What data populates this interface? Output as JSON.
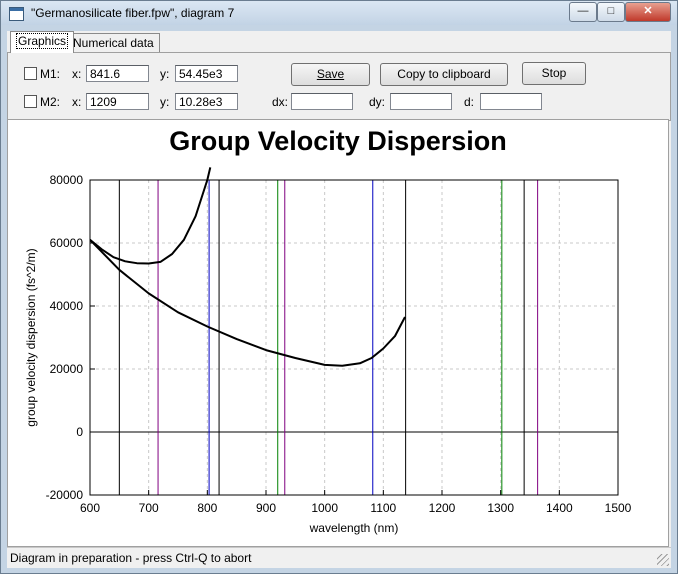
{
  "window": {
    "title": "\"Germanosilicate fiber.fpw\", diagram 7",
    "buttons": {
      "minimize": "—",
      "maximize": "□",
      "close": "✕"
    }
  },
  "tabs": [
    {
      "label": "Graphics",
      "active": true
    },
    {
      "label": "Numerical data",
      "active": false
    }
  ],
  "markers": {
    "m1": {
      "label": "M1:",
      "x_label": "x:",
      "x_value": "841.6",
      "y_label": "y:",
      "y_value": "54.45e3",
      "checked": false
    },
    "m2": {
      "label": "M2:",
      "x_label": "x:",
      "x_value": "1209",
      "y_label": "y:",
      "y_value": "10.28e3",
      "checked": false
    }
  },
  "deltas": {
    "dx_label": "dx:",
    "dx_value": "",
    "dy_label": "dy:",
    "dy_value": "",
    "d_label": "d:",
    "d_value": ""
  },
  "toolbar": {
    "save_label": "Save",
    "copy_label": "Copy to clipboard",
    "stop_label": "Stop"
  },
  "status": {
    "text": "Diagram in preparation - press Ctrl-Q to abort"
  },
  "chart_data": {
    "type": "line",
    "title": "Group Velocity Dispersion",
    "xlabel": "wavelength (nm)",
    "ylabel": "group velocity dispersion (fs^2/m)",
    "xlim": [
      600,
      1500
    ],
    "ylim": [
      -20000,
      80000
    ],
    "x_ticks": [
      600,
      700,
      800,
      900,
      1000,
      1100,
      1200,
      1300,
      1400,
      1500
    ],
    "y_ticks": [
      -20000,
      0,
      20000,
      40000,
      60000,
      80000
    ],
    "grid": true,
    "series": [
      {
        "color": "#000000",
        "points": [
          [
            600,
            61000
          ],
          [
            620,
            58000
          ],
          [
            640,
            55500
          ],
          [
            660,
            54200
          ],
          [
            680,
            53600
          ],
          [
            700,
            53500
          ],
          [
            720,
            54000
          ],
          [
            740,
            56500
          ],
          [
            760,
            61000
          ],
          [
            780,
            68500
          ],
          [
            800,
            80000
          ],
          [
            805,
            84000
          ]
        ]
      },
      {
        "color": "#000000",
        "points": [
          [
            600,
            61000
          ],
          [
            650,
            51500
          ],
          [
            700,
            44000
          ],
          [
            750,
            38000
          ],
          [
            800,
            33500
          ],
          [
            850,
            29500
          ],
          [
            900,
            26000
          ],
          [
            950,
            23500
          ],
          [
            1000,
            21300
          ],
          [
            1030,
            21000
          ],
          [
            1060,
            21800
          ],
          [
            1080,
            23500
          ],
          [
            1100,
            26500
          ],
          [
            1120,
            30500
          ],
          [
            1137,
            36500
          ]
        ]
      }
    ],
    "vertical_lines": [
      {
        "x": 650,
        "color": "#000000"
      },
      {
        "x": 716,
        "color": "#800080"
      },
      {
        "x": 803,
        "color": "#0000c0"
      },
      {
        "x": 820,
        "color": "#000000"
      },
      {
        "x": 920,
        "color": "#008000"
      },
      {
        "x": 932,
        "color": "#800080"
      },
      {
        "x": 1082,
        "color": "#0000c0"
      },
      {
        "x": 1138,
        "color": "#000000"
      },
      {
        "x": 1302,
        "color": "#008000"
      },
      {
        "x": 1340,
        "color": "#000000"
      },
      {
        "x": 1363,
        "color": "#800080"
      }
    ]
  }
}
